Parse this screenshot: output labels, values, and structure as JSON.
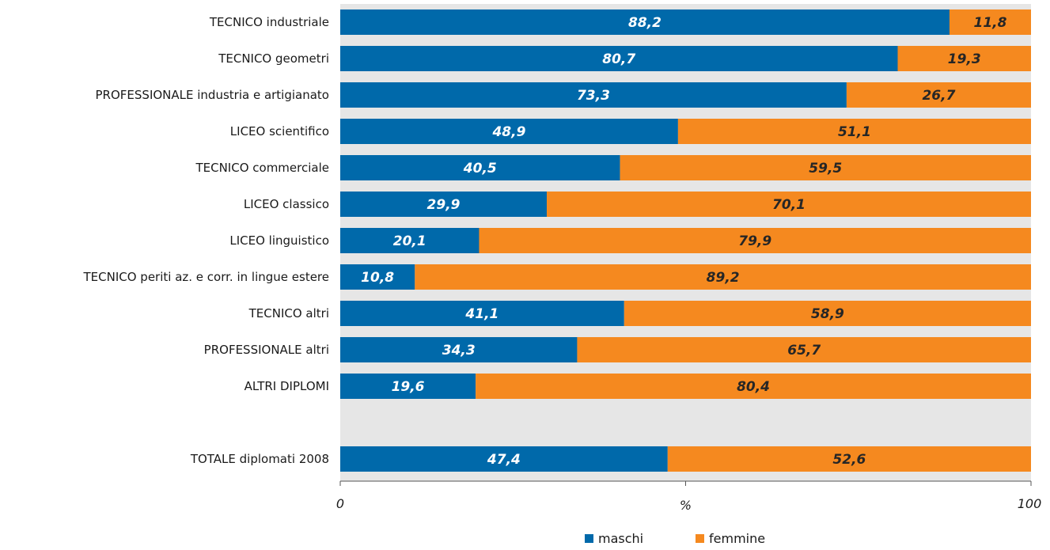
{
  "chart_data": {
    "type": "bar",
    "orientation": "horizontal",
    "stacked": "percent",
    "categories": [
      "TECNICO industriale",
      "TECNICO geometri",
      "PROFESSIONALE industria e artigianato",
      "LICEO scientifico",
      "TECNICO commerciale",
      "LICEO classico",
      "LICEO linguistico",
      "TECNICO periti az. e corr. in lingue estere",
      "TECNICO altri",
      "PROFESSIONALE altri",
      "ALTRI DIPLOMI",
      "",
      "TOTALE diplomati 2008"
    ],
    "series": [
      {
        "name": "maschi",
        "color": "#0069aa",
        "label_color": "#ffffff",
        "values": [
          88.2,
          80.7,
          73.3,
          48.9,
          40.5,
          29.9,
          20.1,
          10.8,
          41.1,
          34.3,
          19.6,
          null,
          47.4
        ],
        "labels": [
          "88,2",
          "80,7",
          "73,3",
          "48,9",
          "40,5",
          "29,9",
          "20,1",
          "10,8",
          "41,1",
          "34,3",
          "19,6",
          "",
          "47,4"
        ]
      },
      {
        "name": "femmine",
        "color": "#f5891f",
        "label_color": "#262626",
        "values": [
          11.8,
          19.3,
          26.7,
          51.1,
          59.5,
          70.1,
          79.9,
          89.2,
          58.9,
          65.7,
          80.4,
          null,
          52.6
        ],
        "labels": [
          "11,8",
          "19,3",
          "26,7",
          "51,1",
          "59,5",
          "70,1",
          "79,9",
          "89,2",
          "58,9",
          "65,7",
          "80,4",
          "",
          "52,6"
        ]
      }
    ],
    "xlim": [
      0,
      100
    ],
    "x_ticks": [
      "0",
      "100"
    ],
    "xlabel": "%",
    "grid": false,
    "plot_background": "#e6e6e6",
    "legend": {
      "position": "bottom-center",
      "items": [
        "maschi",
        "femmine"
      ]
    }
  }
}
